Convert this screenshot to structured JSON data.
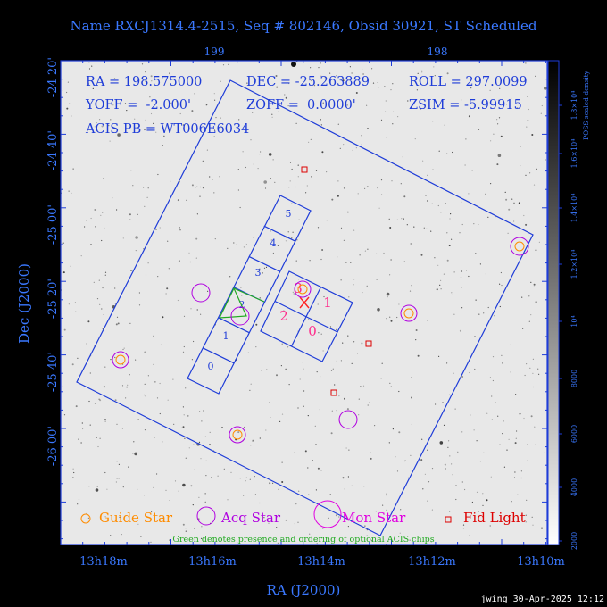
{
  "title": "Name RXCJ1314.4-2515, Seq # 802146, Obsid 30921, ST Scheduled",
  "colors": {
    "blue": "#1e3cd8",
    "axis_text": "#3a78ff",
    "guide": "#ff8c00",
    "acq": "#b000e0",
    "mon": "#e000e0",
    "fid": "#dd0000",
    "green": "#22aa22",
    "chip_label": "#ff2a8a",
    "footer": "#ffffff"
  },
  "info": {
    "ra": "RA = 198.575000",
    "dec": "DEC = -25.263889",
    "roll": "ROLL = 297.0099",
    "yoff": "YOFF =  -2.000'",
    "zoff": "ZOFF =  0.0000'",
    "zsim": "ZSIM = -5.99915",
    "acis": "ACIS PB = WT006E6034"
  },
  "axes": {
    "xlabel": "RA (J2000)",
    "ylabel": "Dec (J2000)",
    "x_ticks": [
      "13h18m",
      "13h16m",
      "13h14m",
      "13h12m",
      "13h10m"
    ],
    "y_ticks": [
      "-24 20'",
      "-24 40'",
      "-25 00'",
      "-25 20'",
      "-25 40'",
      "-26 00'"
    ],
    "top_ticks": [
      "199",
      "198"
    ]
  },
  "colorbar": {
    "label": "POSS scaled density",
    "ticks": [
      "2000",
      "4000",
      "6000",
      "8000",
      "10⁴",
      "1.2×10⁴",
      "1.4×10⁴",
      "1.6×10⁴",
      "1.8×10⁴"
    ]
  },
  "legend": {
    "guide": "Guide Star",
    "acq": "Acq Star",
    "mon": "Mon Star",
    "fid": "Fid Light"
  },
  "chips": {
    "s_labels": [
      "0",
      "1",
      "2",
      "3",
      "4",
      "5"
    ],
    "i_labels": [
      "3",
      "1",
      "2",
      "0"
    ]
  },
  "note": "Green denotes presence and ordering of optional ACIS chips",
  "footer": "jwing 30-Apr-2025 12:12"
}
